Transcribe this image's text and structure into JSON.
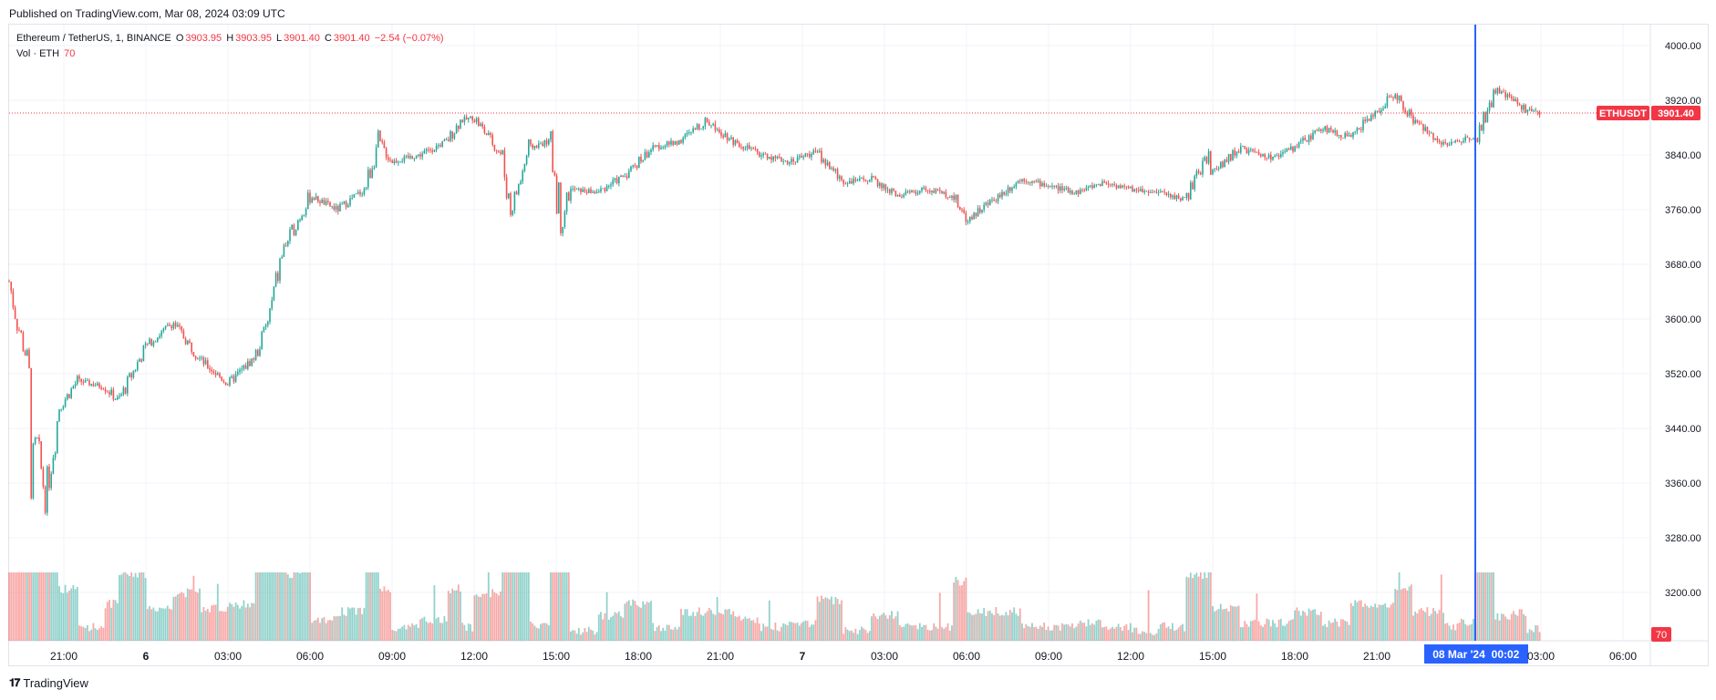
{
  "header": {
    "published": "Published on TradingView.com, Mar 08, 2024 03:09 UTC"
  },
  "legend": {
    "symbol": "Ethereum / TetherUS, 1, BINANCE",
    "o_label": "O",
    "o": "3903.95",
    "h_label": "H",
    "h": "3903.95",
    "l_label": "L",
    "l": "3901.40",
    "c_label": "C",
    "c": "3901.40",
    "change": "−2.54 (−0.07%)",
    "vol_label": "Vol · ETH",
    "vol": "70"
  },
  "price_badge": {
    "symbol": "ETHUSDT",
    "price": "3901.40"
  },
  "vol_badge": "70",
  "crosshair_label": {
    "date": "08 Mar '24",
    "time": "00:02"
  },
  "footer": {
    "brand": "TradingView"
  },
  "colors": {
    "up": "#26a69a",
    "down": "#ef5350",
    "last": "#f23645",
    "crosshair": "#2962ff"
  },
  "chart_data": {
    "type": "candlestick",
    "symbol": "ETHUSDT",
    "interval": "1 minute",
    "y_ticks": [
      "4000.00",
      "3920.00",
      "3840.00",
      "3760.00",
      "3680.00",
      "3600.00",
      "3520.00",
      "3440.00",
      "3360.00",
      "3280.00",
      "3200.00"
    ],
    "ylim": [
      3150,
      4010
    ],
    "x_ticks": [
      "21:00",
      "6",
      "03:00",
      "06:00",
      "09:00",
      "12:00",
      "15:00",
      "18:00",
      "21:00",
      "7",
      "03:00",
      "06:00",
      "09:00",
      "12:00",
      "15:00",
      "18:00",
      "21:00",
      "03:00",
      "06:00"
    ],
    "price_path": [
      {
        "t": "19:00",
        "p": 3655
      },
      {
        "t": "19:20",
        "p": 3590
      },
      {
        "t": "19:40",
        "p": 3540
      },
      {
        "t": "19:50",
        "p": 3390
      },
      {
        "t": "20:00",
        "p": 3420
      },
      {
        "t": "20:20",
        "p": 3340
      },
      {
        "t": "20:50",
        "p": 3470
      },
      {
        "t": "21:30",
        "p": 3510
      },
      {
        "t": "22:30",
        "p": 3500
      },
      {
        "t": "23:00",
        "p": 3480
      },
      {
        "t": "00:00",
        "p": 3560
      },
      {
        "t": "01:00",
        "p": 3595
      },
      {
        "t": "02:00",
        "p": 3540
      },
      {
        "t": "03:00",
        "p": 3505
      },
      {
        "t": "04:00",
        "p": 3545
      },
      {
        "t": "04:30",
        "p": 3600
      },
      {
        "t": "05:00",
        "p": 3700
      },
      {
        "t": "06:00",
        "p": 3780
      },
      {
        "t": "07:00",
        "p": 3760
      },
      {
        "t": "08:00",
        "p": 3790
      },
      {
        "t": "08:30",
        "p": 3860
      },
      {
        "t": "09:00",
        "p": 3830
      },
      {
        "t": "10:00",
        "p": 3840
      },
      {
        "t": "11:00",
        "p": 3860
      },
      {
        "t": "11:30",
        "p": 3890
      },
      {
        "t": "12:00",
        "p": 3895
      },
      {
        "t": "13:00",
        "p": 3840
      },
      {
        "t": "13:20",
        "p": 3760
      },
      {
        "t": "13:40",
        "p": 3800
      },
      {
        "t": "14:00",
        "p": 3850
      },
      {
        "t": "14:45",
        "p": 3860
      },
      {
        "t": "15:00",
        "p": 3800
      },
      {
        "t": "15:10",
        "p": 3740
      },
      {
        "t": "15:30",
        "p": 3790
      },
      {
        "t": "16:30",
        "p": 3785
      },
      {
        "t": "17:30",
        "p": 3810
      },
      {
        "t": "18:30",
        "p": 3850
      },
      {
        "t": "19:30",
        "p": 3860
      },
      {
        "t": "20:30",
        "p": 3890
      },
      {
        "t": "21:30",
        "p": 3860
      },
      {
        "t": "22:30",
        "p": 3840
      },
      {
        "t": "23:30",
        "p": 3830
      },
      {
        "t": "00:30",
        "p": 3845
      },
      {
        "t": "01:30",
        "p": 3800
      },
      {
        "t": "02:30",
        "p": 3805
      },
      {
        "t": "03:30",
        "p": 3780
      },
      {
        "t": "04:30",
        "p": 3790
      },
      {
        "t": "05:30",
        "p": 3780
      },
      {
        "t": "06:00",
        "p": 3745
      },
      {
        "t": "07:00",
        "p": 3775
      },
      {
        "t": "08:00",
        "p": 3805
      },
      {
        "t": "09:00",
        "p": 3795
      },
      {
        "t": "10:00",
        "p": 3785
      },
      {
        "t": "11:00",
        "p": 3800
      },
      {
        "t": "12:00",
        "p": 3790
      },
      {
        "t": "13:00",
        "p": 3785
      },
      {
        "t": "14:00",
        "p": 3775
      },
      {
        "t": "14:50",
        "p": 3840
      },
      {
        "t": "15:00",
        "p": 3815
      },
      {
        "t": "16:00",
        "p": 3850
      },
      {
        "t": "17:00",
        "p": 3835
      },
      {
        "t": "18:00",
        "p": 3850
      },
      {
        "t": "19:00",
        "p": 3880
      },
      {
        "t": "20:00",
        "p": 3865
      },
      {
        "t": "21:00",
        "p": 3905
      },
      {
        "t": "21:40",
        "p": 3930
      },
      {
        "t": "22:20",
        "p": 3890
      },
      {
        "t": "23:00",
        "p": 3870
      },
      {
        "t": "23:30",
        "p": 3855
      },
      {
        "t": "00:00",
        "p": 3860
      },
      {
        "t": "00:40",
        "p": 3870
      },
      {
        "t": "01:20",
        "p": 3935
      },
      {
        "t": "02:00",
        "p": 3920
      },
      {
        "t": "02:30",
        "p": 3905
      },
      {
        "t": "03:00",
        "p": 3901.4
      }
    ],
    "last_price": 3901.4,
    "grid": true
  }
}
